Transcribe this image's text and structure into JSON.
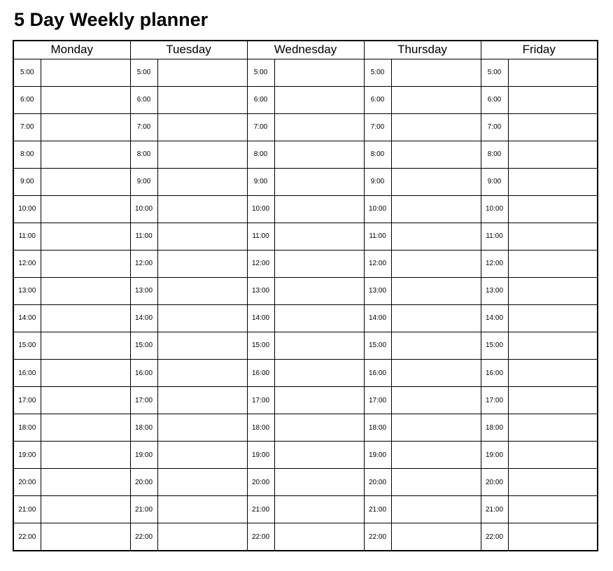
{
  "title": "5 Day Weekly planner",
  "planner": {
    "days": [
      "Monday",
      "Tuesday",
      "Wednesday",
      "Thursday",
      "Friday"
    ],
    "times": [
      "5:00",
      "6:00",
      "7:00",
      "8:00",
      "9:00",
      "10:00",
      "11:00",
      "12:00",
      "13:00",
      "14:00",
      "15:00",
      "16:00",
      "17:00",
      "18:00",
      "19:00",
      "20:00",
      "21:00",
      "22:00"
    ],
    "slot_value": ""
  },
  "colors": {
    "border": "#000000",
    "background": "#ffffff",
    "text": "#000000"
  }
}
